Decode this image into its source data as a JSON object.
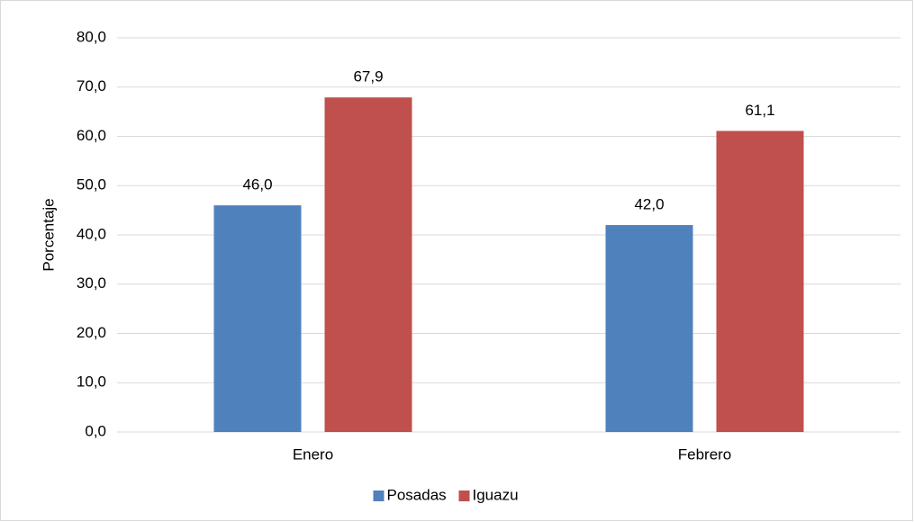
{
  "chart_data": {
    "type": "bar",
    "categories": [
      "Enero",
      "Febrero"
    ],
    "series": [
      {
        "name": "Posadas",
        "color": "#4f81bd",
        "values": [
          46.0,
          42.0
        ],
        "value_labels": [
          "46,0",
          "42,0"
        ]
      },
      {
        "name": "Iguazu",
        "color": "#c0504d",
        "values": [
          67.9,
          61.1
        ],
        "value_labels": [
          "67,9",
          "61,1"
        ]
      }
    ],
    "ylabel": "Porcentaje",
    "ylim": [
      0,
      80
    ],
    "yticks": [
      {
        "value": 0,
        "label": "0,0"
      },
      {
        "value": 10,
        "label": "10,0"
      },
      {
        "value": 20,
        "label": "20,0"
      },
      {
        "value": 30,
        "label": "30,0"
      },
      {
        "value": 40,
        "label": "40,0"
      },
      {
        "value": 50,
        "label": "50,0"
      },
      {
        "value": 60,
        "label": "60,0"
      },
      {
        "value": 70,
        "label": "70,0"
      },
      {
        "value": 80,
        "label": "80,0"
      }
    ],
    "grid": true,
    "legend": "bottom"
  }
}
